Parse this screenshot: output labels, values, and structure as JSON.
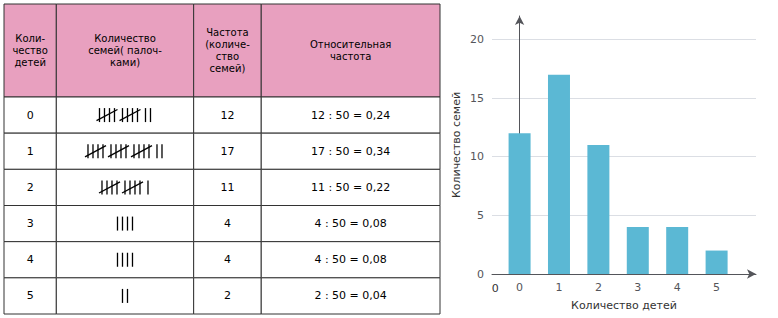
{
  "chart_data": [
    {
      "type": "table",
      "header": [
        "Коли-\nчество\nдетей",
        "Количество\nсемей( палоч-\nками)",
        "Частота\n(количе-\nство\nсемей)",
        "Относительная\nчастота"
      ],
      "rows": [
        [
          "0",
          "12",
          "12 : 50 = 0,24"
        ],
        [
          "1",
          "17",
          "17 : 50 = 0,34"
        ],
        [
          "2",
          "11",
          "11 : 50 = 0,22"
        ],
        [
          "3",
          "4",
          "4 : 50 = 0,08"
        ],
        [
          "4",
          "4",
          "4 : 50 = 0,08"
        ],
        [
          "5",
          "2",
          "2 : 50 = 0,04"
        ]
      ],
      "tally": [
        [
          5,
          5,
          2
        ],
        [
          5,
          5,
          5,
          2
        ],
        [
          5,
          5,
          1
        ],
        [
          4
        ],
        [
          4
        ],
        [
          2
        ]
      ],
      "header_color": "#e8a0bf",
      "cell_color": "#ffffff",
      "border_color": "#333333"
    },
    {
      "type": "bar",
      "x": [
        0,
        1,
        2,
        3,
        4,
        5
      ],
      "values": [
        12,
        17,
        11,
        4,
        4,
        2
      ],
      "color": "#5bb8d4",
      "xlabel": "Количество детей",
      "ylabel": "Количество семей",
      "xlim": [
        -0.7,
        6.0
      ],
      "xticks": [
        0,
        1,
        2,
        3,
        4,
        5
      ],
      "ylim": [
        0,
        22
      ],
      "yticks": [
        0,
        5,
        10,
        15,
        20
      ],
      "grid": true,
      "annotations": [
        {
          "text": "0",
          "x": -0.62,
          "y": -1.2
        }
      ]
    }
  ]
}
